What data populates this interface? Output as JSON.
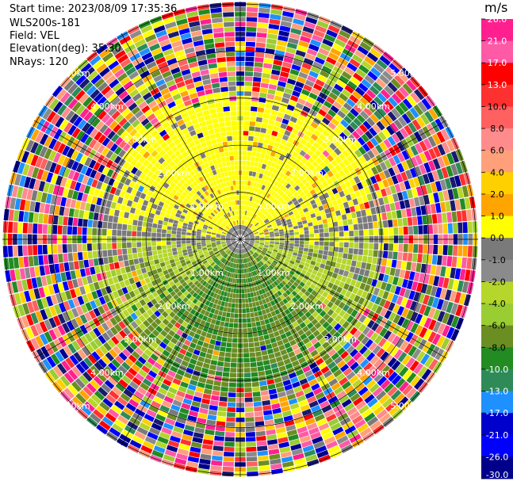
{
  "header": {
    "start_time": "Start time: 2023/08/09 17:35:36",
    "instrument": "WLS200s-181",
    "field": "Field: VEL",
    "elevation": "Elevation(deg): 35.30",
    "nrays": "NRays: 120"
  },
  "chart_data": {
    "type": "heatmap",
    "projection": "polar-ppi",
    "field": "VEL",
    "units": "m/s",
    "nrays": 120,
    "elevation_deg": 35.3,
    "range_rings_km": [
      1.0,
      2.0,
      3.0,
      4.0,
      5.0
    ],
    "ring_labels": [
      "1.00km",
      "2.00km",
      "3.00km",
      "4.00km",
      "5.00km"
    ],
    "colorbar": {
      "title": "m/s",
      "ticks": [
        "26.0",
        "21.0",
        "17.0",
        "13.0",
        "10.0",
        "8.0",
        "6.0",
        "4.0",
        "2.0",
        "1.0",
        "0.0",
        "-1.0",
        "-2.0",
        "-4.0",
        "-6.0",
        "-8.0",
        "-10.0",
        "-13.0",
        "-17.0",
        "-21.0",
        "-26.0",
        "-30.0"
      ],
      "colors": [
        "#ff1f8f",
        "#ff5aa6",
        "#ff0000",
        "#ff3030",
        "#ff6060",
        "#ff8c8c",
        "#ffa07a",
        "#ffd000",
        "#ffa500",
        "#ffff00",
        "#7a7a7a",
        "#8b8b8b",
        "#b5d62a",
        "#9acd32",
        "#6b8e23",
        "#228b22",
        "#2e8b57",
        "#1e90ff",
        "#0000cd",
        "#0000ff",
        "#00008b",
        "#191970"
      ]
    }
  }
}
